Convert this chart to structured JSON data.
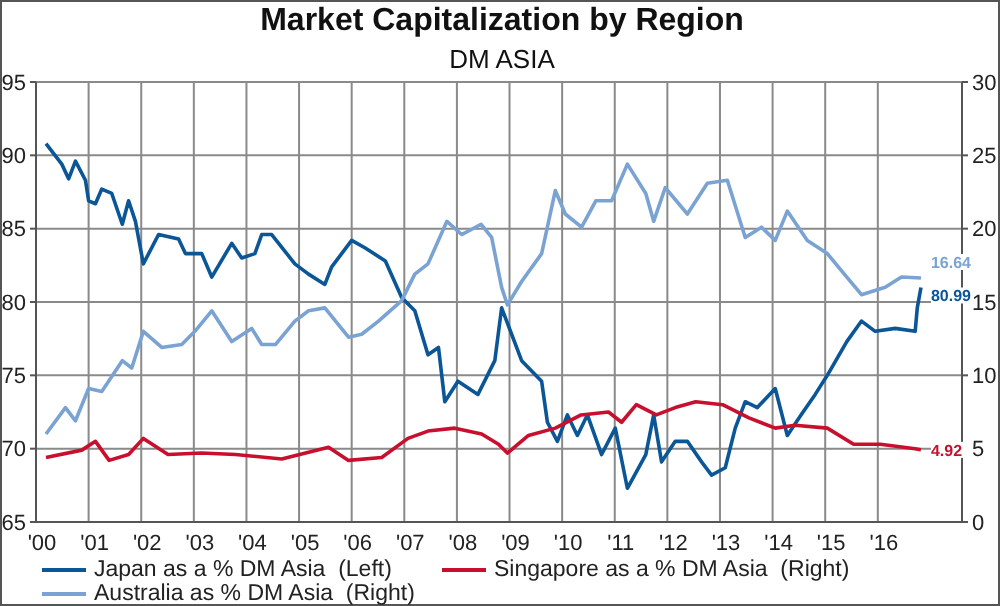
{
  "chart_data": {
    "type": "line",
    "title": "Market Capitalization by Region",
    "subtitle": "DM ASIA",
    "xlim": [
      2000,
      2017.6
    ],
    "xticks": [
      {
        "value": 2000,
        "label": "'00"
      },
      {
        "value": 2001,
        "label": "'01"
      },
      {
        "value": 2002,
        "label": "'02"
      },
      {
        "value": 2003,
        "label": "'03"
      },
      {
        "value": 2004,
        "label": "'04"
      },
      {
        "value": 2005,
        "label": "'05"
      },
      {
        "value": 2006,
        "label": "'06"
      },
      {
        "value": 2007,
        "label": "'07"
      },
      {
        "value": 2008,
        "label": "'08"
      },
      {
        "value": 2009,
        "label": "'09"
      },
      {
        "value": 2010,
        "label": "'10"
      },
      {
        "value": 2011,
        "label": "'11"
      },
      {
        "value": 2012,
        "label": "'12"
      },
      {
        "value": 2013,
        "label": "'13"
      },
      {
        "value": 2014,
        "label": "'14"
      },
      {
        "value": 2015,
        "label": "'15"
      },
      {
        "value": 2016,
        "label": "'16"
      }
    ],
    "ylim": [
      65,
      95
    ],
    "yticks": [
      65,
      70,
      75,
      80,
      85,
      90,
      95
    ],
    "y2lim": [
      0,
      30
    ],
    "y2ticks": [
      0,
      5,
      10,
      15,
      20,
      25,
      30
    ],
    "grid": true,
    "legend": "bottom",
    "marker": "none",
    "line_style": "solid",
    "series": [
      {
        "name": "Japan as a % DM Asia  (Left)",
        "color": "#0b5697",
        "x": [
          2000.19,
          2000.49,
          2000.62,
          2000.75,
          2000.94,
          2001.0,
          2001.13,
          2001.25,
          2001.44,
          2001.64,
          2001.76,
          2001.89,
          2002.04,
          2002.33,
          2002.71,
          2002.84,
          2003.15,
          2003.34,
          2003.72,
          2003.91,
          2004.16,
          2004.29,
          2004.48,
          2004.92,
          2005.18,
          2005.49,
          2005.62,
          2006.0,
          2006.25,
          2006.64,
          2006.95,
          2007.2,
          2007.45,
          2007.65,
          2007.77,
          2008.02,
          2008.4,
          2008.72,
          2008.85,
          2009.23,
          2009.61,
          2009.72,
          2009.91,
          2010.1,
          2010.29,
          2010.48,
          2010.75,
          2011.01,
          2011.24,
          2011.59,
          2011.74,
          2011.89,
          2012.15,
          2012.38,
          2012.65,
          2012.84,
          2013.1,
          2013.29,
          2013.48,
          2013.71,
          2014.05,
          2014.28,
          2014.54,
          2014.81,
          2015.04,
          2015.41,
          2015.69,
          2015.95,
          2016.33,
          2016.71,
          2016.75,
          2016.82
        ],
        "values": [
          90.8,
          89.4,
          88.4,
          89.6,
          88.3,
          86.9,
          86.7,
          87.7,
          87.4,
          85.3,
          86.9,
          85.5,
          82.6,
          84.6,
          84.3,
          83.3,
          83.3,
          81.7,
          84.0,
          83.0,
          83.3,
          84.6,
          84.6,
          82.6,
          81.9,
          81.2,
          82.4,
          84.2,
          83.7,
          82.8,
          80.3,
          79.4,
          76.4,
          76.9,
          73.2,
          74.6,
          73.7,
          76.0,
          79.6,
          76.0,
          74.6,
          71.8,
          70.5,
          72.3,
          70.9,
          72.3,
          69.6,
          71.4,
          67.3,
          69.6,
          72.3,
          69.1,
          70.5,
          70.5,
          69.1,
          68.2,
          68.7,
          71.4,
          73.2,
          72.8,
          74.1,
          70.9,
          72.3,
          73.7,
          75.0,
          77.3,
          78.7,
          78.0,
          78.2,
          78.0,
          79.6,
          80.99
        ],
        "value_labels": [
          null,
          null,
          null,
          null,
          null,
          null,
          null,
          null,
          null,
          null,
          null,
          null,
          null,
          null,
          null,
          null,
          null,
          null,
          null,
          null,
          null,
          null,
          null,
          null,
          null,
          null,
          null,
          null,
          null,
          null,
          null,
          null,
          null,
          null,
          null,
          null,
          null,
          null,
          null,
          null,
          null,
          null,
          null,
          null,
          null,
          null,
          null,
          null,
          null,
          null,
          null,
          null,
          null,
          null,
          null,
          null,
          null,
          null,
          null,
          null,
          null,
          null,
          null,
          null,
          null,
          null,
          null,
          null,
          null,
          null,
          null,
          "80.99"
        ]
      },
      {
        "name": "Singapore as a % DM Asia  (Right)",
        "color": "#c8102e",
        "axis": "y2",
        "x": [
          2000.19,
          2000.87,
          2001.13,
          2001.39,
          2001.76,
          2002.04,
          2002.51,
          2003.15,
          2003.79,
          2004.67,
          2005.56,
          2005.94,
          2006.57,
          2007.07,
          2007.45,
          2007.96,
          2008.47,
          2008.79,
          2008.96,
          2009.36,
          2009.87,
          2010.36,
          2010.88,
          2011.13,
          2011.41,
          2011.79,
          2012.15,
          2012.54,
          2013.05,
          2013.55,
          2014.05,
          2014.43,
          2015.04,
          2015.54,
          2016.05,
          2016.71,
          2016.82
        ],
        "values": [
          4.4,
          4.9,
          5.5,
          4.2,
          4.6,
          5.7,
          4.6,
          4.7,
          4.6,
          4.3,
          5.1,
          4.2,
          4.4,
          5.7,
          6.2,
          6.4,
          6.0,
          5.3,
          4.7,
          5.9,
          6.4,
          7.3,
          7.5,
          6.8,
          8.0,
          7.3,
          7.8,
          8.2,
          8.0,
          7.1,
          6.4,
          6.6,
          6.4,
          5.3,
          5.3,
          5.0,
          4.92
        ],
        "value_labels": [
          null,
          null,
          null,
          null,
          null,
          null,
          null,
          null,
          null,
          null,
          null,
          null,
          null,
          null,
          null,
          null,
          null,
          null,
          null,
          null,
          null,
          null,
          null,
          null,
          null,
          null,
          null,
          null,
          null,
          null,
          null,
          null,
          null,
          null,
          null,
          null,
          "4.92"
        ]
      },
      {
        "name": "Australia as % DM Asia  (Right)",
        "color": "#7aa3d4",
        "axis": "y2",
        "x": [
          2000.19,
          2000.56,
          2000.75,
          2001.0,
          2001.25,
          2001.64,
          2001.82,
          2002.04,
          2002.39,
          2002.77,
          2003.02,
          2003.34,
          2003.72,
          2004.1,
          2004.29,
          2004.55,
          2004.92,
          2005.18,
          2005.49,
          2005.94,
          2006.19,
          2006.51,
          2006.95,
          2007.2,
          2007.45,
          2007.81,
          2008.09,
          2008.46,
          2008.66,
          2008.85,
          2008.96,
          2009.23,
          2009.61,
          2009.87,
          2010.06,
          2010.37,
          2010.64,
          2010.94,
          2011.24,
          2011.59,
          2011.74,
          2011.96,
          2012.38,
          2012.76,
          2013.14,
          2013.48,
          2013.79,
          2014.05,
          2014.28,
          2014.66,
          2015.04,
          2015.41,
          2015.69,
          2016.14,
          2016.45,
          2016.82
        ],
        "values": [
          6.0,
          7.8,
          6.9,
          9.1,
          8.9,
          11.0,
          10.5,
          13.0,
          11.9,
          12.1,
          13.0,
          14.4,
          12.3,
          13.2,
          12.1,
          12.1,
          13.7,
          14.4,
          14.6,
          12.6,
          12.8,
          13.7,
          15.1,
          16.9,
          17.6,
          20.5,
          19.6,
          20.3,
          19.4,
          16.0,
          14.8,
          16.4,
          18.3,
          22.6,
          21.0,
          20.1,
          21.9,
          21.9,
          24.4,
          22.4,
          20.5,
          22.8,
          21.0,
          23.1,
          23.3,
          19.4,
          20.1,
          19.2,
          21.2,
          19.2,
          18.3,
          16.7,
          15.5,
          16.0,
          16.7,
          16.64
        ],
        "value_labels": [
          null,
          null,
          null,
          null,
          null,
          null,
          null,
          null,
          null,
          null,
          null,
          null,
          null,
          null,
          null,
          null,
          null,
          null,
          null,
          null,
          null,
          null,
          null,
          null,
          null,
          null,
          null,
          null,
          null,
          null,
          null,
          null,
          null,
          null,
          null,
          null,
          null,
          null,
          null,
          null,
          null,
          null,
          null,
          null,
          null,
          null,
          null,
          null,
          null,
          null,
          null,
          null,
          null,
          null,
          null,
          "16.64"
        ]
      }
    ]
  }
}
